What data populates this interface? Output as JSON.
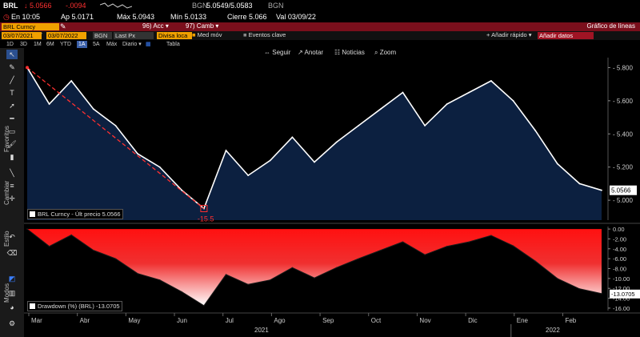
{
  "quote": {
    "ticker": "BRL",
    "last_price": "5.0566",
    "change": "-.0094",
    "source": "BGN",
    "bid_ask": "5.0549/5.0583",
    "ask_source": "BGN",
    "time_label": "En 10:05",
    "open_label": "Ap 5.0171",
    "high_label": "Máx 5.0943",
    "low_label": "Mín 5.0133",
    "close_label": "Cierre 5.066",
    "value_date_label": "Val 03/09/22"
  },
  "menu": {
    "security": "BRL Curncy",
    "actions_number": "96)",
    "actions_label": "Acc",
    "change_number": "97)",
    "change_label": "Camb",
    "chart_type": "Gráfico de líneas"
  },
  "params": {
    "start_date": "03/07/2021",
    "end_date": "03/07/2022",
    "source": "BGN",
    "price_field": "Last Px",
    "currency": "Divisa loca",
    "studies": "Med móv",
    "events": "Eventos clave",
    "quick_add": "Añadir rápido",
    "add_data": "Añadir datos"
  },
  "periods": [
    "1D",
    "3D",
    "1M",
    "6M",
    "YTD",
    "1A",
    "5A",
    "Máx"
  ],
  "selected_period": "1A",
  "frequency": "Diario",
  "table_label": "Tabla",
  "nav_tools": [
    "Seguir",
    "Anotar",
    "Noticias",
    "Zoom"
  ],
  "side_labels": {
    "favorites": "Favoritos",
    "change": "Cambiar",
    "style": "Estilo",
    "modes": "Modos"
  },
  "icons": [
    "cursor-arrow-icon",
    "pencil-icon",
    "line-tool-icon",
    "text-tool-icon",
    "arrow-tool-icon",
    "trend-line-icon",
    "horizontal-line-icon",
    "rectangle-icon",
    "fibonacci-icon",
    "measure-icon",
    "brush-icon",
    "gear-icon"
  ],
  "colors": {
    "price_line": "#ffffff",
    "price_fill": "#0c2040",
    "drawdown_top": "#ff1010",
    "drawdown_bottom": "#ffffff",
    "accent": "#f0a000",
    "annotation": "#ff3030"
  },
  "chart_data": [
    {
      "type": "line",
      "legend": "BRL Curncy - Últ precio",
      "legend_value": "5.0566",
      "last_value_label": "5.0566",
      "annotation": "-15.5",
      "x_tick_labels": [
        "Mar",
        "Abr",
        "May",
        "Jun",
        "Jul",
        "Ago",
        "Sep",
        "Oct",
        "Nov",
        "Dic",
        "Ene",
        "Feb"
      ],
      "year_labels": [
        "2021",
        "2022"
      ],
      "y_ticks": [
        "5.000",
        "5.200",
        "5.400",
        "5.600",
        "5.800"
      ],
      "ylim": [
        4.88,
        5.86
      ],
      "x": [
        "2021-03-09",
        "2021-03-23",
        "2021-04-06",
        "2021-04-20",
        "2021-05-04",
        "2021-05-18",
        "2021-06-01",
        "2021-06-15",
        "2021-06-29",
        "2021-07-13",
        "2021-07-27",
        "2021-08-10",
        "2021-08-24",
        "2021-09-07",
        "2021-09-21",
        "2021-10-05",
        "2021-10-19",
        "2021-11-02",
        "2021-11-16",
        "2021-11-30",
        "2021-12-14",
        "2021-12-28",
        "2022-01-11",
        "2022-01-25",
        "2022-02-08",
        "2022-02-22",
        "2022-03-07"
      ],
      "values": [
        5.8,
        5.58,
        5.72,
        5.55,
        5.45,
        5.28,
        5.2,
        5.06,
        4.95,
        5.3,
        5.15,
        5.24,
        5.38,
        5.23,
        5.35,
        5.45,
        5.55,
        5.65,
        5.45,
        5.58,
        5.65,
        5.72,
        5.6,
        5.42,
        5.22,
        5.1,
        5.06
      ]
    },
    {
      "type": "area",
      "legend": "Drawdown (%) (BRL)",
      "legend_value": "-13.0705",
      "last_value_label": "-13.0705",
      "y_ticks": [
        "-16.00",
        "-14.00",
        "-12.00",
        "-10.00",
        "-8.00",
        "-6.00",
        "-4.00",
        "-2.00",
        "0.00"
      ],
      "ylim": [
        -16.5,
        0.5
      ],
      "values": [
        0.0,
        -3.5,
        -1.2,
        -4.3,
        -6.0,
        -9.0,
        -10.3,
        -12.7,
        -15.5,
        -9.2,
        -11.2,
        -10.3,
        -7.8,
        -9.9,
        -7.8,
        -6.0,
        -4.3,
        -2.6,
        -5.2,
        -3.5,
        -2.6,
        -1.3,
        -3.4,
        -6.5,
        -10.0,
        -12.1,
        -13.07
      ]
    }
  ]
}
